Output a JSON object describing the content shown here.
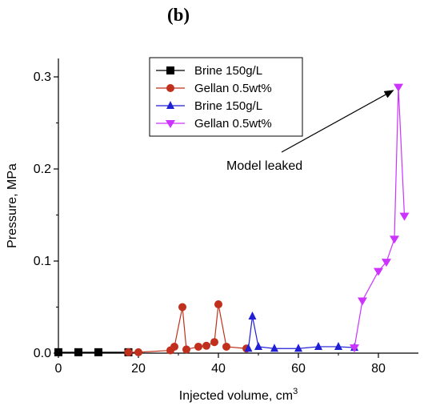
{
  "panel_label": "(b)",
  "chart_data": {
    "type": "line",
    "title": "",
    "xlabel": "Injected volume, cm",
    "xlabel_sup": "3",
    "ylabel": "Pressure, MPa",
    "xlim": [
      0,
      90
    ],
    "ylim": [
      0,
      0.32
    ],
    "xticks": [
      0,
      20,
      40,
      60,
      80
    ],
    "yticks": [
      0.0,
      0.1,
      0.2,
      0.3
    ],
    "xtick_labels": [
      "0",
      "20",
      "40",
      "60",
      "80"
    ],
    "ytick_labels": [
      "0.0",
      "0.1",
      "0.2",
      "0.3"
    ],
    "grid": false,
    "legend_position": "top-center",
    "series": [
      {
        "name": "Brine 150g/L",
        "color": "#000000",
        "marker": "square",
        "x": [
          0,
          5,
          10,
          17.5
        ],
        "y": [
          0.001,
          0.001,
          0.001,
          0.001
        ]
      },
      {
        "name": "Gellan 0.5wt%",
        "color": "#c0301c",
        "marker": "circle",
        "x": [
          17.5,
          20,
          28,
          29,
          31,
          32,
          35,
          37,
          39,
          40,
          42,
          47
        ],
        "y": [
          0.001,
          0.001,
          0.003,
          0.007,
          0.05,
          0.004,
          0.007,
          0.008,
          0.012,
          0.053,
          0.007,
          0.005
        ]
      },
      {
        "name": "Brine 150g/L",
        "color": "#1f1fd6",
        "marker": "triangle-up",
        "x": [
          47.5,
          48.5,
          50,
          54,
          60,
          65,
          70,
          74
        ],
        "y": [
          0.005,
          0.04,
          0.007,
          0.005,
          0.005,
          0.007,
          0.007,
          0.006
        ]
      },
      {
        "name": "Gellan 0.5wt%",
        "color": "#cc33ff",
        "marker": "triangle-down",
        "x": [
          74,
          76,
          80,
          82,
          84,
          85,
          86.5
        ],
        "y": [
          0.006,
          0.057,
          0.089,
          0.099,
          0.124,
          0.289,
          0.149
        ]
      }
    ],
    "annotations": [
      {
        "text": "Model leaked",
        "arrow_to": [
          84.5,
          0.287
        ],
        "text_at": [
          32,
          0.205
        ]
      }
    ]
  }
}
